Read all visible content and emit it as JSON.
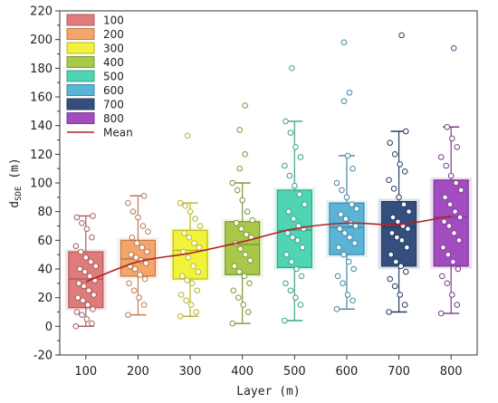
{
  "chart_data": {
    "type": "box",
    "xlabel": "Layer (m)",
    "ylabel_main": "d",
    "ylabel_sub": "SDE",
    "ylabel_unit": "(m)",
    "categories": [
      "100",
      "200",
      "300",
      "400",
      "500",
      "600",
      "700",
      "800"
    ],
    "ylim": [
      -20,
      220
    ],
    "yticks": [
      -20,
      0,
      20,
      40,
      60,
      80,
      100,
      120,
      140,
      160,
      180,
      200,
      220
    ],
    "legend_position": "top-left",
    "mean_label": "Mean",
    "mean_color": "#b22222",
    "colors": [
      "#e07b7b",
      "#f5a46a",
      "#f2f23a",
      "#a8c84a",
      "#4fd4b4",
      "#5ab4d6",
      "#344e7e",
      "#a14dbf"
    ],
    "boxes": [
      {
        "name": "100",
        "whisker_low": 0,
        "q1": 13,
        "median": 33,
        "q3": 52,
        "whisker_high": 77,
        "mean": 31,
        "points": [
          0,
          2,
          5,
          8,
          10,
          12,
          15,
          18,
          20,
          22,
          25,
          28,
          30,
          32,
          35,
          38,
          40,
          42,
          45,
          48,
          52,
          56,
          62,
          68,
          72,
          76,
          77
        ]
      },
      {
        "name": "200",
        "whisker_low": 8,
        "q1": 35,
        "median": 47,
        "q3": 60,
        "whisker_high": 91,
        "mean": 45,
        "points": [
          8,
          15,
          20,
          25,
          30,
          33,
          36,
          40,
          42,
          44,
          46,
          48,
          50,
          52,
          55,
          58,
          62,
          66,
          70,
          76,
          80,
          86,
          91
        ]
      },
      {
        "name": "300",
        "whisker_low": 7,
        "q1": 33,
        "median": 53,
        "q3": 67,
        "whisker_high": 86,
        "mean": 51,
        "points": [
          7,
          10,
          15,
          18,
          22,
          25,
          30,
          32,
          35,
          38,
          42,
          48,
          52,
          55,
          58,
          62,
          65,
          70,
          75,
          80,
          84,
          86,
          133
        ]
      },
      {
        "name": "400",
        "whisker_low": 2,
        "q1": 36,
        "median": 57,
        "q3": 73,
        "whisker_high": 100,
        "mean": 59,
        "points": [
          2,
          10,
          15,
          20,
          25,
          30,
          35,
          38,
          42,
          46,
          50,
          54,
          58,
          62,
          64,
          68,
          72,
          74,
          80,
          88,
          95,
          100,
          110,
          120,
          137,
          154
        ]
      },
      {
        "name": "500",
        "whisker_low": 4,
        "q1": 41,
        "median": 67,
        "q3": 95,
        "whisker_high": 143,
        "mean": 68,
        "points": [
          4,
          15,
          20,
          25,
          30,
          35,
          40,
          45,
          50,
          55,
          60,
          62,
          65,
          68,
          70,
          75,
          80,
          85,
          92,
          98,
          105,
          112,
          118,
          125,
          135,
          143,
          180
        ]
      },
      {
        "name": "600",
        "whisker_low": 12,
        "q1": 50,
        "median": 69,
        "q3": 86,
        "whisker_high": 119,
        "mean": 72,
        "points": [
          12,
          18,
          22,
          30,
          35,
          40,
          45,
          50,
          55,
          58,
          62,
          65,
          68,
          70,
          72,
          75,
          78,
          82,
          85,
          90,
          95,
          100,
          110,
          119,
          157,
          163,
          198
        ]
      },
      {
        "name": "700",
        "whisker_low": 10,
        "q1": 42,
        "median": 69,
        "q3": 87,
        "whisker_high": 136,
        "mean": 71,
        "points": [
          10,
          15,
          22,
          28,
          33,
          38,
          42,
          45,
          50,
          55,
          60,
          62,
          65,
          68,
          70,
          73,
          76,
          80,
          85,
          90,
          96,
          102,
          108,
          113,
          120,
          128,
          136,
          203
        ]
      },
      {
        "name": "800",
        "whisker_low": 9,
        "q1": 42,
        "median": 76,
        "q3": 102,
        "whisker_high": 139,
        "mean": 77,
        "points": [
          9,
          15,
          22,
          30,
          35,
          40,
          45,
          50,
          55,
          60,
          65,
          70,
          73,
          76,
          80,
          85,
          90,
          95,
          100,
          105,
          112,
          118,
          125,
          131,
          139,
          194
        ]
      }
    ]
  }
}
